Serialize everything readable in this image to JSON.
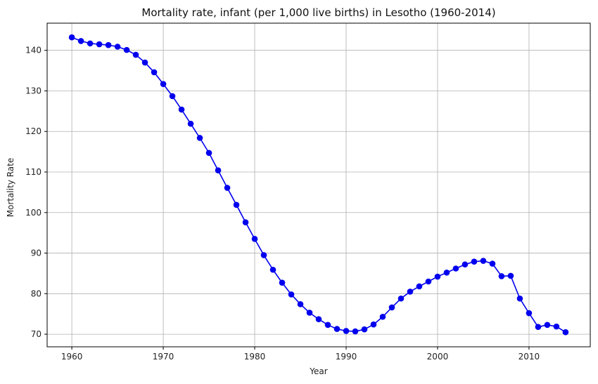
{
  "chart_data": {
    "type": "line",
    "title": "Mortality rate, infant (per 1,000 live births) in Lesotho (1960-2014)",
    "xlabel": "Year",
    "ylabel": "Mortality Rate",
    "xlim": [
      1957.3,
      2016.7
    ],
    "ylim": [
      66.9,
      146.7
    ],
    "xticks": [
      1960,
      1970,
      1980,
      1990,
      2000,
      2010
    ],
    "yticks": [
      70,
      80,
      90,
      100,
      110,
      120,
      130,
      140
    ],
    "grid": true,
    "line_color": "#0000ee",
    "marker_color": "#0000ee",
    "series": [
      {
        "x": [
          1960,
          1961,
          1962,
          1963,
          1964,
          1965,
          1966,
          1967,
          1968,
          1969,
          1970,
          1971,
          1972,
          1973,
          1974,
          1975,
          1976,
          1977,
          1978,
          1979,
          1980,
          1981,
          1982,
          1983,
          1984,
          1985,
          1986,
          1987,
          1988,
          1989,
          1990,
          1991,
          1992,
          1993,
          1994,
          1995,
          1996,
          1997,
          1998,
          1999,
          2000,
          2001,
          2002,
          2003,
          2004,
          2005,
          2006,
          2007,
          2008,
          2009,
          2010,
          2011,
          2012,
          2013,
          2014
        ],
        "values": [
          143.2,
          142.3,
          141.7,
          141.5,
          141.3,
          140.9,
          140.1,
          138.9,
          137.0,
          134.6,
          131.7,
          128.7,
          125.4,
          121.9,
          118.4,
          114.7,
          110.4,
          106.1,
          101.9,
          97.6,
          93.5,
          89.5,
          85.9,
          82.7,
          79.8,
          77.4,
          75.3,
          73.7,
          72.3,
          71.3,
          70.8,
          70.7,
          71.2,
          72.4,
          74.3,
          76.6,
          78.8,
          80.5,
          81.8,
          83.0,
          84.2,
          85.2,
          86.2,
          87.2,
          87.9,
          88.1,
          87.4,
          84.3,
          84.4,
          78.8,
          75.2,
          71.8,
          72.3,
          71.9,
          70.5
        ]
      }
    ]
  }
}
